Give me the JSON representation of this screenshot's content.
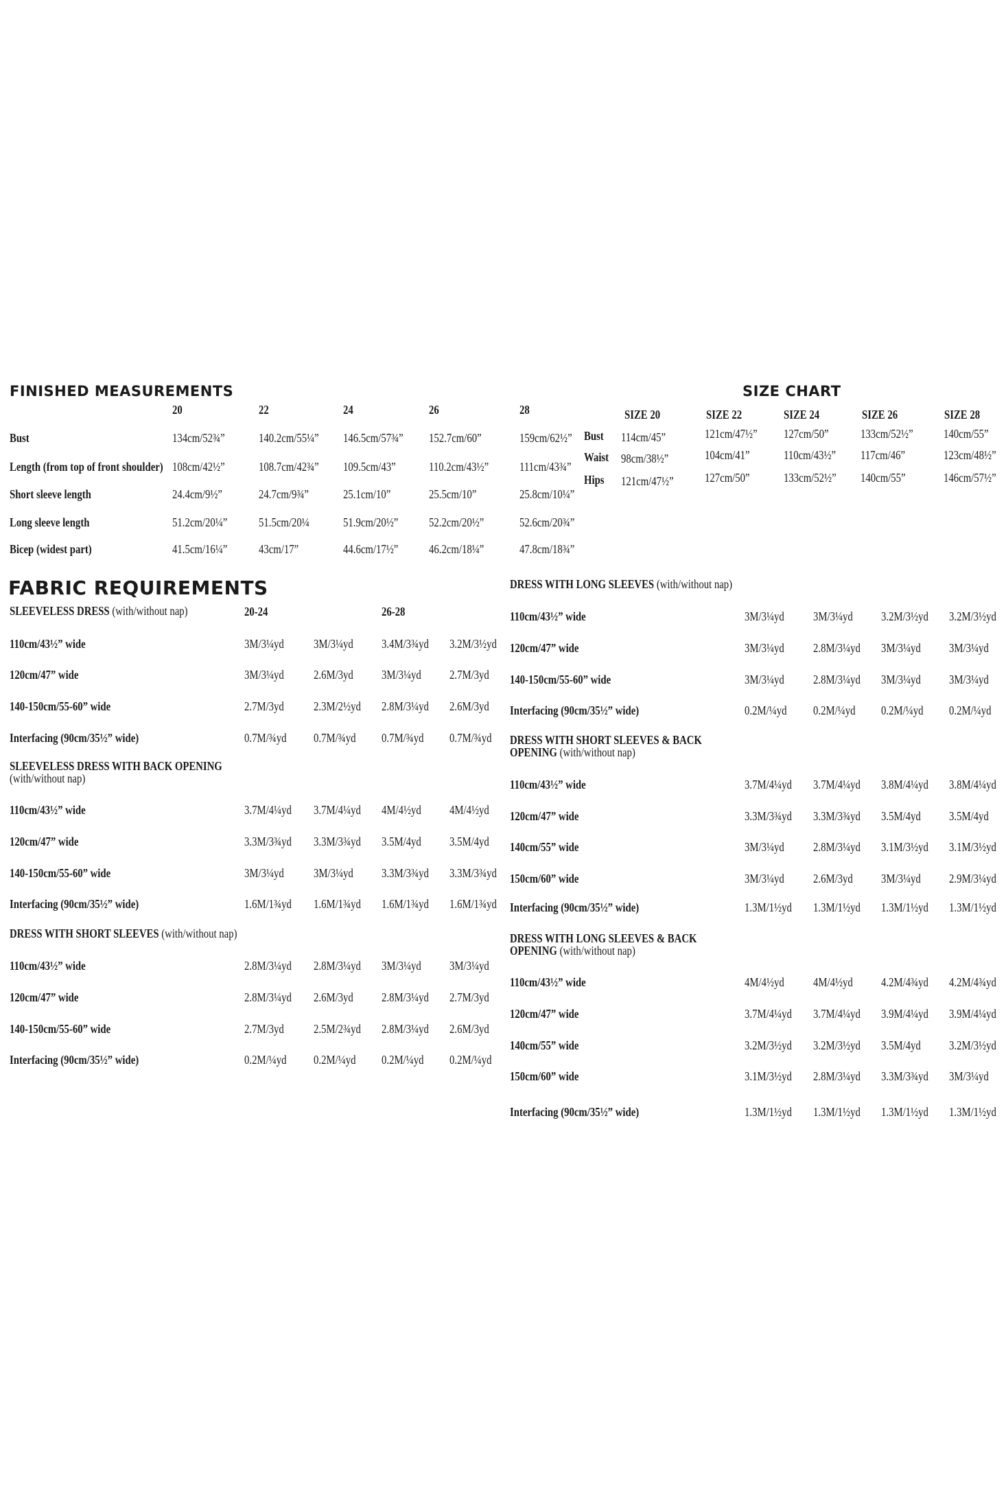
{
  "finished_measurements": {
    "title": "FINISHED MEASUREMENTS",
    "sizes": [
      "20",
      "22",
      "24",
      "26",
      "28"
    ],
    "rows": [
      {
        "label": "Bust",
        "values": [
          "134cm/52¾”",
          "140.2cm/55¼”",
          "146.5cm/57¾”",
          "152.7cm/60”",
          "159cm/62½”"
        ]
      },
      {
        "label": "Length (from top of front shoulder)",
        "values": [
          "108cm/42½”",
          "108.7cm/42¾”",
          "109.5cm/43”",
          "110.2cm/43½”",
          "111cm/43¾”"
        ]
      },
      {
        "label": "Short sleeve length",
        "values": [
          "24.4cm/9½”",
          "24.7cm/9¾”",
          "25.1cm/10”",
          "25.5cm/10”",
          "25.8cm/10¼”"
        ]
      },
      {
        "label": "Long sleeve length",
        "values": [
          "51.2cm/20¼”",
          "51.5cm/20¼",
          "51.9cm/20½”",
          "52.2cm/20½”",
          "52.6cm/20¾”"
        ]
      },
      {
        "label": "Bicep (widest part)",
        "values": [
          "41.5cm/16¼”",
          "43cm/17”",
          "44.6cm/17½”",
          "46.2cm/18¼”",
          "47.8cm/18¾”"
        ]
      }
    ]
  },
  "size_chart": {
    "title": "SIZE CHART",
    "sizes": [
      "SIZE 20",
      "SIZE 22",
      "SIZE 24",
      "SIZE 26",
      "SIZE 28"
    ],
    "rows": [
      {
        "label": "Bust",
        "values": [
          "114cm/45”",
          "121cm/47½”",
          "127cm/50”",
          "133cm/52½”",
          "140cm/55”"
        ]
      },
      {
        "label": "Waist",
        "values": [
          "98cm/38½”",
          "104cm/41”",
          "110cm/43½”",
          "117cm/46”",
          "123cm/48½”"
        ]
      },
      {
        "label": "Hips",
        "values": [
          "121cm/47½”",
          "127cm/50”",
          "133cm/52½”",
          "140cm/55”",
          "146cm/57½”"
        ]
      }
    ]
  },
  "fabric_requirements": {
    "title": "FABRIC REQUIREMENTS",
    "size_groups": [
      "20-24",
      "26-28"
    ],
    "sections": [
      {
        "title": "SLEEVELESS DRESS",
        "note": "(with/without nap)",
        "rows": [
          {
            "label": "110cm/43½” wide",
            "values": [
              "3M/3¼yd",
              "3M/3¼yd",
              "3.4M/3¾yd",
              "3.2M/3½yd"
            ]
          },
          {
            "label": "120cm/47” wide",
            "values": [
              "3M/3¼yd",
              "2.6M/3yd",
              "3M/3¼yd",
              "2.7M/3yd"
            ]
          },
          {
            "label": "140-150cm/55-60” wide",
            "values": [
              "2.7M/3yd",
              "2.3M/2½yd",
              "2.8M/3¼yd",
              "2.6M/3yd"
            ]
          },
          {
            "label": "Interfacing (90cm/35½” wide)",
            "values": [
              "0.7M/¾yd",
              "0.7M/¾yd",
              "0.7M/¾yd",
              "0.7M/¾yd"
            ]
          }
        ]
      },
      {
        "title": "SLEEVELESS DRESS WITH BACK OPENING",
        "note": "(with/without nap)",
        "rows": [
          {
            "label": "110cm/43½” wide",
            "values": [
              "3.7M/4¼yd",
              "3.7M/4¼yd",
              "4M/4½yd",
              "4M/4½yd"
            ]
          },
          {
            "label": "120cm/47” wide",
            "values": [
              "3.3M/3¾yd",
              "3.3M/3¾yd",
              "3.5M/4yd",
              "3.5M/4yd"
            ]
          },
          {
            "label": "140-150cm/55-60” wide",
            "values": [
              "3M/3¼yd",
              "3M/3¼yd",
              "3.3M/3¾yd",
              "3.3M/3¾yd"
            ]
          },
          {
            "label": "Interfacing (90cm/35½” wide)",
            "values": [
              "1.6M/1¾yd",
              "1.6M/1¾yd",
              "1.6M/1¾yd",
              "1.6M/1¾yd"
            ]
          }
        ]
      },
      {
        "title": "DRESS WITH SHORT SLEEVES",
        "note": "(with/without nap)",
        "rows": [
          {
            "label": "110cm/43½” wide",
            "values": [
              "2.8M/3¼yd",
              "2.8M/3¼yd",
              "3M/3¼yd",
              "3M/3¼yd"
            ]
          },
          {
            "label": "120cm/47” wide",
            "values": [
              "2.8M/3¼yd",
              "2.6M/3yd",
              "2.8M/3¼yd",
              "2.7M/3yd"
            ]
          },
          {
            "label": "140-150cm/55-60” wide",
            "values": [
              "2.7M/3yd",
              "2.5M/2¾yd",
              "2.8M/3¼yd",
              "2.6M/3yd"
            ]
          },
          {
            "label": "Interfacing (90cm/35½” wide)",
            "values": [
              "0.2M/¼yd",
              "0.2M/¼yd",
              "0.2M/¼yd",
              "0.2M/¼yd"
            ]
          }
        ]
      },
      {
        "title": "DRESS WITH LONG SLEEVES",
        "note": "(with/without nap)",
        "rows": [
          {
            "label": "110cm/43½” wide",
            "values": [
              "3M/3¼yd",
              "3M/3¼yd",
              "3.2M/3½yd",
              "3.2M/3½yd"
            ]
          },
          {
            "label": "120cm/47” wide",
            "values": [
              "3M/3¼yd",
              "2.8M/3¼yd",
              "3M/3¼yd",
              "3M/3¼yd"
            ]
          },
          {
            "label": "140-150cm/55-60” wide",
            "values": [
              "3M/3¼yd",
              "2.8M/3¼yd",
              "3M/3¼yd",
              "3M/3¼yd"
            ]
          },
          {
            "label": "Interfacing (90cm/35½” wide)",
            "values": [
              "0.2M/¼yd",
              "0.2M/¼yd",
              "0.2M/¼yd",
              "0.2M/¼yd"
            ]
          }
        ]
      },
      {
        "title": "DRESS WITH SHORT SLEEVES & BACK OPENING",
        "note": "(with/without nap)",
        "rows": [
          {
            "label": "110cm/43½” wide",
            "values": [
              "3.7M/4¼yd",
              "3.7M/4¼yd",
              "3.8M/4¼yd",
              "3.8M/4¼yd"
            ]
          },
          {
            "label": "120cm/47” wide",
            "values": [
              "3.3M/3¾yd",
              "3.3M/3¾yd",
              "3.5M/4yd",
              "3.5M/4yd"
            ]
          },
          {
            "label": "140cm/55” wide",
            "values": [
              "3M/3¼yd",
              "2.8M/3¼yd",
              "3.1M/3½yd",
              "3.1M/3½yd"
            ]
          },
          {
            "label": "150cm/60” wide",
            "values": [
              "3M/3¼yd",
              "2.6M/3yd",
              "3M/3¼yd",
              "2.9M/3¼yd"
            ]
          },
          {
            "label": "Interfacing (90cm/35½” wide)",
            "values": [
              "1.3M/1½yd",
              "1.3M/1½yd",
              "1.3M/1½yd",
              "1.3M/1½yd"
            ]
          }
        ]
      },
      {
        "title": "DRESS WITH LONG SLEEVES & BACK OPENING",
        "note": "(with/without nap)",
        "rows": [
          {
            "label": "110cm/43½” wide",
            "values": [
              "4M/4½yd",
              "4M/4½yd",
              "4.2M/4¾yd",
              "4.2M/4¾yd"
            ]
          },
          {
            "label": "120cm/47” wide",
            "values": [
              "3.7M/4¼yd",
              "3.7M/4¼yd",
              "3.9M/4¼yd",
              "3.9M/4¼yd"
            ]
          },
          {
            "label": "140cm/55” wide",
            "values": [
              "3.2M/3½yd",
              "3.2M/3½yd",
              "3.5M/4yd",
              "3.2M/3½yd"
            ]
          },
          {
            "label": "150cm/60” wide",
            "values": [
              "3.1M/3½yd",
              "2.8M/3¼yd",
              "3.3M/3¾yd",
              "3M/3¼yd"
            ]
          },
          {
            "label": "Interfacing (90cm/35½” wide)",
            "values": [
              "1.3M/1½yd",
              "1.3M/1½yd",
              "1.3M/1½yd",
              "1.3M/1½yd"
            ]
          }
        ]
      }
    ]
  }
}
